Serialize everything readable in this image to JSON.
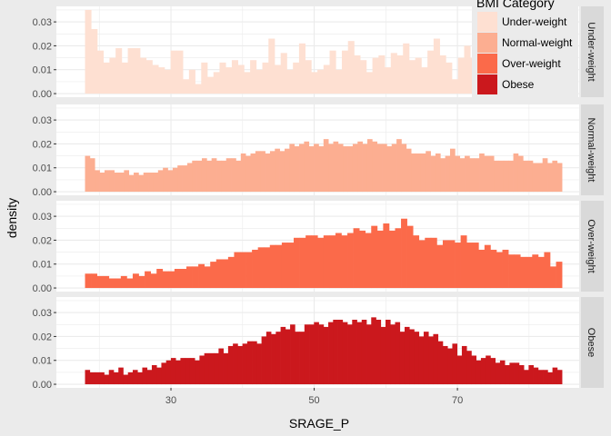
{
  "chart_data": {
    "type": "histogram",
    "xlabel": "SRAGE_P",
    "ylabel": "density",
    "xlim": [
      14,
      87
    ],
    "ylim": [
      -0.0015,
      0.0365
    ],
    "x_ticks": [
      30,
      50,
      70
    ],
    "y_ticks": [
      "0.00",
      "0.01",
      "0.02",
      "0.03"
    ],
    "y_tick_values": [
      0,
      0.01,
      0.02,
      0.03
    ],
    "bin_start": 18,
    "bin_width": 1,
    "facets": [
      "Under-weight",
      "Normal-weight",
      "Over-weight",
      "Obese"
    ],
    "legend": {
      "title": "BMI Category",
      "position": "top-right",
      "items": [
        "Under-weight",
        "Normal-weight",
        "Over-weight",
        "Obese"
      ]
    },
    "colors": {
      "Under-weight": "#FEE0D2",
      "Normal-weight": "#FCAE91",
      "Over-weight": "#FB6A4A",
      "Obese": "#CB181D",
      "panel_bg": "#FFFFFF",
      "grid": "#EBEBEB",
      "strip_bg": "#D9D9D9",
      "page_bg": "#EBEBEB"
    },
    "series": [
      {
        "name": "Under-weight",
        "values": [
          0.035,
          0.027,
          0.018,
          0.013,
          0.015,
          0.019,
          0.013,
          0.019,
          0.019,
          0.015,
          0.014,
          0.012,
          0.011,
          0.01,
          0.018,
          0.018,
          0.006,
          0.01,
          0.004,
          0.013,
          0.007,
          0.009,
          0.013,
          0.011,
          0.014,
          0.012,
          0.009,
          0.014,
          0.01,
          0.013,
          0.023,
          0.012,
          0.017,
          0.01,
          0.013,
          0.021,
          0.014,
          0.009,
          0.01,
          0.012,
          0.018,
          0.01,
          0.018,
          0.022,
          0.016,
          0.014,
          0.009,
          0.015,
          0.016,
          0.011,
          0.017,
          0.016,
          0.021,
          0.014,
          0.015,
          0.011,
          0.018,
          0.023,
          0.016,
          0.013,
          0.006,
          0.015,
          0.02,
          0.015,
          0.01,
          0.01,
          0.022,
          0.011,
          0.007,
          0.015,
          0.01,
          0.014,
          0.008,
          0.016,
          0.012,
          0.013,
          0.012,
          0.011
        ]
      },
      {
        "name": "Normal-weight",
        "values": [
          0.015,
          0.014,
          0.009,
          0.008,
          0.009,
          0.009,
          0.008,
          0.008,
          0.009,
          0.007,
          0.008,
          0.007,
          0.008,
          0.008,
          0.008,
          0.009,
          0.01,
          0.009,
          0.01,
          0.011,
          0.011,
          0.012,
          0.013,
          0.013,
          0.014,
          0.013,
          0.014,
          0.013,
          0.013,
          0.014,
          0.014,
          0.013,
          0.016,
          0.015,
          0.016,
          0.017,
          0.017,
          0.016,
          0.017,
          0.018,
          0.017,
          0.018,
          0.02,
          0.019,
          0.02,
          0.021,
          0.019,
          0.02,
          0.019,
          0.022,
          0.02,
          0.021,
          0.02,
          0.019,
          0.019,
          0.02,
          0.021,
          0.02,
          0.022,
          0.021,
          0.02,
          0.02,
          0.019,
          0.02,
          0.022,
          0.02,
          0.018,
          0.016,
          0.016,
          0.016,
          0.017,
          0.015,
          0.016,
          0.014,
          0.015,
          0.018,
          0.015,
          0.014,
          0.015,
          0.014,
          0.014,
          0.016,
          0.015,
          0.015,
          0.013,
          0.013,
          0.013,
          0.013,
          0.016,
          0.015,
          0.013,
          0.013,
          0.012,
          0.012,
          0.014,
          0.012,
          0.013,
          0.012
        ]
      },
      {
        "name": "Over-weight",
        "values": [
          0.006,
          0.006,
          0.005,
          0.005,
          0.004,
          0.004,
          0.005,
          0.004,
          0.006,
          0.005,
          0.007,
          0.006,
          0.008,
          0.007,
          0.007,
          0.008,
          0.008,
          0.009,
          0.009,
          0.01,
          0.009,
          0.011,
          0.012,
          0.012,
          0.013,
          0.015,
          0.015,
          0.015,
          0.016,
          0.017,
          0.017,
          0.018,
          0.018,
          0.019,
          0.019,
          0.021,
          0.021,
          0.022,
          0.022,
          0.021,
          0.022,
          0.022,
          0.023,
          0.022,
          0.023,
          0.025,
          0.024,
          0.023,
          0.026,
          0.024,
          0.027,
          0.024,
          0.025,
          0.029,
          0.026,
          0.022,
          0.02,
          0.021,
          0.021,
          0.018,
          0.02,
          0.02,
          0.019,
          0.022,
          0.019,
          0.019,
          0.016,
          0.018,
          0.016,
          0.015,
          0.016,
          0.014,
          0.014,
          0.013,
          0.013,
          0.014,
          0.013,
          0.015,
          0.009,
          0.011
        ]
      },
      {
        "name": "Obese",
        "values": [
          0.006,
          0.005,
          0.005,
          0.005,
          0.004,
          0.006,
          0.005,
          0.007,
          0.004,
          0.005,
          0.006,
          0.005,
          0.007,
          0.006,
          0.008,
          0.007,
          0.009,
          0.01,
          0.011,
          0.01,
          0.011,
          0.011,
          0.011,
          0.01,
          0.012,
          0.013,
          0.013,
          0.013,
          0.015,
          0.013,
          0.016,
          0.017,
          0.016,
          0.017,
          0.018,
          0.018,
          0.017,
          0.02,
          0.022,
          0.021,
          0.022,
          0.024,
          0.023,
          0.025,
          0.022,
          0.022,
          0.025,
          0.025,
          0.026,
          0.025,
          0.024,
          0.026,
          0.027,
          0.027,
          0.026,
          0.025,
          0.027,
          0.026,
          0.027,
          0.025,
          0.028,
          0.027,
          0.024,
          0.027,
          0.025,
          0.026,
          0.022,
          0.024,
          0.023,
          0.022,
          0.02,
          0.022,
          0.02,
          0.021,
          0.018,
          0.016,
          0.015,
          0.017,
          0.012,
          0.016,
          0.014,
          0.012,
          0.01,
          0.011,
          0.012,
          0.011,
          0.009,
          0.01,
          0.008,
          0.009,
          0.009,
          0.008,
          0.006,
          0.008,
          0.007,
          0.006,
          0.006,
          0.005,
          0.007,
          0.006
        ]
      }
    ]
  }
}
